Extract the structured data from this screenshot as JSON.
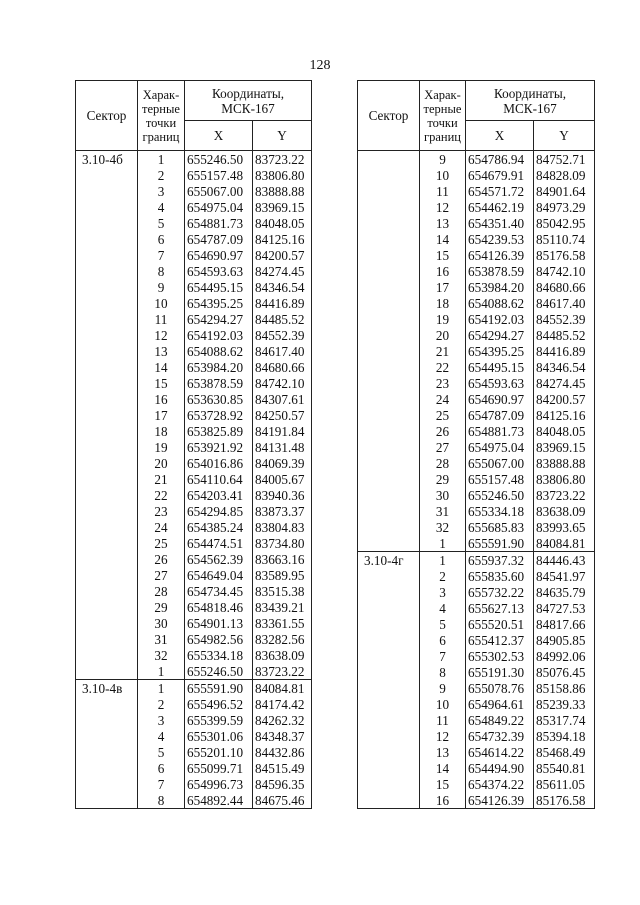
{
  "page_number": "128",
  "header": {
    "sector": "Сектор",
    "points": "Харак-терные точки границ",
    "coords": "Координаты, МСК-167",
    "x": "X",
    "y": "Y"
  },
  "left_table": {
    "sections": [
      {
        "sector": "3.10-4б",
        "rows": [
          [
            "1",
            "655246.50",
            "83723.22"
          ],
          [
            "2",
            "655157.48",
            "83806.80"
          ],
          [
            "3",
            "655067.00",
            "83888.88"
          ],
          [
            "4",
            "654975.04",
            "83969.15"
          ],
          [
            "5",
            "654881.73",
            "84048.05"
          ],
          [
            "6",
            "654787.09",
            "84125.16"
          ],
          [
            "7",
            "654690.97",
            "84200.57"
          ],
          [
            "8",
            "654593.63",
            "84274.45"
          ],
          [
            "9",
            "654495.15",
            "84346.54"
          ],
          [
            "10",
            "654395.25",
            "84416.89"
          ],
          [
            "11",
            "654294.27",
            "84485.52"
          ],
          [
            "12",
            "654192.03",
            "84552.39"
          ],
          [
            "13",
            "654088.62",
            "84617.40"
          ],
          [
            "14",
            "653984.20",
            "84680.66"
          ],
          [
            "15",
            "653878.59",
            "84742.10"
          ],
          [
            "16",
            "653630.85",
            "84307.61"
          ],
          [
            "17",
            "653728.92",
            "84250.57"
          ],
          [
            "18",
            "653825.89",
            "84191.84"
          ],
          [
            "19",
            "653921.92",
            "84131.48"
          ],
          [
            "20",
            "654016.86",
            "84069.39"
          ],
          [
            "21",
            "654110.64",
            "84005.67"
          ],
          [
            "22",
            "654203.41",
            "83940.36"
          ],
          [
            "23",
            "654294.85",
            "83873.37"
          ],
          [
            "24",
            "654385.24",
            "83804.83"
          ],
          [
            "25",
            "654474.51",
            "83734.80"
          ],
          [
            "26",
            "654562.39",
            "83663.16"
          ],
          [
            "27",
            "654649.04",
            "83589.95"
          ],
          [
            "28",
            "654734.45",
            "83515.38"
          ],
          [
            "29",
            "654818.46",
            "83439.21"
          ],
          [
            "30",
            "654901.13",
            "83361.55"
          ],
          [
            "31",
            "654982.56",
            "83282.56"
          ],
          [
            "32",
            "655334.18",
            "83638.09"
          ],
          [
            "1",
            "655246.50",
            "83723.22"
          ]
        ]
      },
      {
        "sector": "3.10-4в",
        "rows": [
          [
            "1",
            "655591.90",
            "84084.81"
          ],
          [
            "2",
            "655496.52",
            "84174.42"
          ],
          [
            "3",
            "655399.59",
            "84262.32"
          ],
          [
            "4",
            "655301.06",
            "84348.37"
          ],
          [
            "5",
            "655201.10",
            "84432.86"
          ],
          [
            "6",
            "655099.71",
            "84515.49"
          ],
          [
            "7",
            "654996.73",
            "84596.35"
          ],
          [
            "8",
            "654892.44",
            "84675.46"
          ]
        ]
      }
    ]
  },
  "right_table": {
    "sections": [
      {
        "sector": "",
        "rows": [
          [
            "9",
            "654786.94",
            "84752.71"
          ],
          [
            "10",
            "654679.91",
            "84828.09"
          ],
          [
            "11",
            "654571.72",
            "84901.64"
          ],
          [
            "12",
            "654462.19",
            "84973.29"
          ],
          [
            "13",
            "654351.40",
            "85042.95"
          ],
          [
            "14",
            "654239.53",
            "85110.74"
          ],
          [
            "15",
            "654126.39",
            "85176.58"
          ],
          [
            "16",
            "653878.59",
            "84742.10"
          ],
          [
            "17",
            "653984.20",
            "84680.66"
          ],
          [
            "18",
            "654088.62",
            "84617.40"
          ],
          [
            "19",
            "654192.03",
            "84552.39"
          ],
          [
            "20",
            "654294.27",
            "84485.52"
          ],
          [
            "21",
            "654395.25",
            "84416.89"
          ],
          [
            "22",
            "654495.15",
            "84346.54"
          ],
          [
            "23",
            "654593.63",
            "84274.45"
          ],
          [
            "24",
            "654690.97",
            "84200.57"
          ],
          [
            "25",
            "654787.09",
            "84125.16"
          ],
          [
            "26",
            "654881.73",
            "84048.05"
          ],
          [
            "27",
            "654975.04",
            "83969.15"
          ],
          [
            "28",
            "655067.00",
            "83888.88"
          ],
          [
            "29",
            "655157.48",
            "83806.80"
          ],
          [
            "30",
            "655246.50",
            "83723.22"
          ],
          [
            "31",
            "655334.18",
            "83638.09"
          ],
          [
            "32",
            "655685.83",
            "83993.65"
          ],
          [
            "1",
            "655591.90",
            "84084.81"
          ]
        ]
      },
      {
        "sector": "3.10-4г",
        "rows": [
          [
            "1",
            "655937.32",
            "84446.43"
          ],
          [
            "2",
            "655835.60",
            "84541.97"
          ],
          [
            "3",
            "655732.22",
            "84635.79"
          ],
          [
            "4",
            "655627.13",
            "84727.53"
          ],
          [
            "5",
            "655520.51",
            "84817.66"
          ],
          [
            "6",
            "655412.37",
            "84905.85"
          ],
          [
            "7",
            "655302.53",
            "84992.06"
          ],
          [
            "8",
            "655191.30",
            "85076.45"
          ],
          [
            "9",
            "655078.76",
            "85158.86"
          ],
          [
            "10",
            "654964.61",
            "85239.33"
          ],
          [
            "11",
            "654849.22",
            "85317.74"
          ],
          [
            "12",
            "654732.39",
            "85394.18"
          ],
          [
            "13",
            "654614.22",
            "85468.49"
          ],
          [
            "14",
            "654494.90",
            "85540.81"
          ],
          [
            "15",
            "654374.22",
            "85611.05"
          ],
          [
            "16",
            "654126.39",
            "85176.58"
          ]
        ]
      }
    ]
  }
}
